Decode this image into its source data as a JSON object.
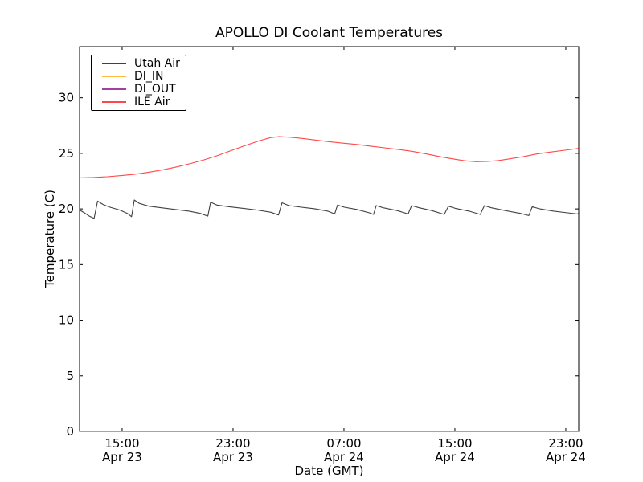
{
  "title": "APOLLO DI Coolant Temperatures",
  "axes": {
    "xlabel": "Date (GMT)",
    "ylabel": "Temperature (C)",
    "ylim": [
      0,
      34.6
    ],
    "y_ticks": [
      0,
      5,
      10,
      15,
      20,
      25,
      30
    ],
    "xlim_hours": [
      0,
      36
    ],
    "x_ticks": [
      {
        "t": 3.07,
        "time": "15:00",
        "date": "Apr 23"
      },
      {
        "t": 11.07,
        "time": "23:00",
        "date": "Apr 23"
      },
      {
        "t": 19.07,
        "time": "07:00",
        "date": "Apr 24"
      },
      {
        "t": 27.07,
        "time": "15:00",
        "date": "Apr 24"
      },
      {
        "t": 35.07,
        "time": "23:00",
        "date": "Apr 24"
      }
    ]
  },
  "chart_data": {
    "type": "line",
    "title": "APOLLO DI Coolant Temperatures",
    "xlabel": "Date (GMT)",
    "ylabel": "Temperature (C)",
    "x_axis_note": "t = hours from axis start (~12:00 Apr 23 GMT); axis spans ~36 h to ~24:00 Apr 24",
    "ylim": [
      0,
      34.6
    ],
    "grid": false,
    "legend_position": "upper left",
    "series": [
      {
        "name": "Utah Air",
        "color": "#000000",
        "alpha": 0.75,
        "points": [
          [
            0,
            19.9
          ],
          [
            0.35,
            19.65
          ],
          [
            0.7,
            19.35
          ],
          [
            1.05,
            19.15
          ],
          [
            1.3,
            20.7
          ],
          [
            1.7,
            20.4
          ],
          [
            2.2,
            20.15
          ],
          [
            2.9,
            19.9
          ],
          [
            3.45,
            19.6
          ],
          [
            3.75,
            19.3
          ],
          [
            3.95,
            20.8
          ],
          [
            4.3,
            20.5
          ],
          [
            5.0,
            20.25
          ],
          [
            5.9,
            20.1
          ],
          [
            6.9,
            19.95
          ],
          [
            7.9,
            19.8
          ],
          [
            8.7,
            19.6
          ],
          [
            9.25,
            19.35
          ],
          [
            9.45,
            20.6
          ],
          [
            9.9,
            20.35
          ],
          [
            10.8,
            20.2
          ],
          [
            11.8,
            20.05
          ],
          [
            12.8,
            19.9
          ],
          [
            13.8,
            19.7
          ],
          [
            14.35,
            19.45
          ],
          [
            14.6,
            20.55
          ],
          [
            15.1,
            20.3
          ],
          [
            16.0,
            20.15
          ],
          [
            17.0,
            20.0
          ],
          [
            17.9,
            19.8
          ],
          [
            18.4,
            19.55
          ],
          [
            18.6,
            20.35
          ],
          [
            19.1,
            20.15
          ],
          [
            20.0,
            19.95
          ],
          [
            20.9,
            19.65
          ],
          [
            21.2,
            19.5
          ],
          [
            21.4,
            20.3
          ],
          [
            21.9,
            20.1
          ],
          [
            22.9,
            19.85
          ],
          [
            23.7,
            19.55
          ],
          [
            23.95,
            20.3
          ],
          [
            24.5,
            20.1
          ],
          [
            25.4,
            19.85
          ],
          [
            26.3,
            19.5
          ],
          [
            26.6,
            20.25
          ],
          [
            27.1,
            20.05
          ],
          [
            28.1,
            19.8
          ],
          [
            28.9,
            19.5
          ],
          [
            29.2,
            20.3
          ],
          [
            29.7,
            20.1
          ],
          [
            30.7,
            19.85
          ],
          [
            31.8,
            19.6
          ],
          [
            32.4,
            19.4
          ],
          [
            32.65,
            20.2
          ],
          [
            33.2,
            20.0
          ],
          [
            34.2,
            19.8
          ],
          [
            35.2,
            19.65
          ],
          [
            35.9,
            19.55
          ],
          [
            36,
            19.6
          ]
        ]
      },
      {
        "name": "DI_IN",
        "color": "#ffa500",
        "alpha": 0.75,
        "points": [
          [
            0,
            0
          ],
          [
            36,
            0
          ]
        ]
      },
      {
        "name": "DI_OUT",
        "color": "#800080",
        "alpha": 0.75,
        "points": [
          [
            0,
            0
          ],
          [
            36,
            0
          ]
        ]
      },
      {
        "name": "ILE Air",
        "color": "#ff0000",
        "alpha": 0.72,
        "points": [
          [
            0,
            22.8
          ],
          [
            1,
            22.83
          ],
          [
            2,
            22.9
          ],
          [
            3,
            23.0
          ],
          [
            4,
            23.12
          ],
          [
            5,
            23.3
          ],
          [
            6,
            23.52
          ],
          [
            7,
            23.78
          ],
          [
            8,
            24.08
          ],
          [
            9,
            24.42
          ],
          [
            10,
            24.82
          ],
          [
            11,
            25.28
          ],
          [
            12,
            25.72
          ],
          [
            13,
            26.15
          ],
          [
            13.8,
            26.42
          ],
          [
            14.4,
            26.5
          ],
          [
            15.2,
            26.45
          ],
          [
            16,
            26.35
          ],
          [
            17,
            26.2
          ],
          [
            18,
            26.05
          ],
          [
            19,
            25.92
          ],
          [
            20,
            25.8
          ],
          [
            21,
            25.65
          ],
          [
            22,
            25.5
          ],
          [
            23,
            25.35
          ],
          [
            24,
            25.18
          ],
          [
            25,
            24.95
          ],
          [
            26,
            24.7
          ],
          [
            27,
            24.48
          ],
          [
            27.8,
            24.33
          ],
          [
            28.6,
            24.25
          ],
          [
            29.4,
            24.27
          ],
          [
            30.2,
            24.35
          ],
          [
            31,
            24.5
          ],
          [
            32,
            24.7
          ],
          [
            33,
            24.95
          ],
          [
            34,
            25.12
          ],
          [
            35,
            25.28
          ],
          [
            36,
            25.45
          ]
        ]
      }
    ]
  }
}
